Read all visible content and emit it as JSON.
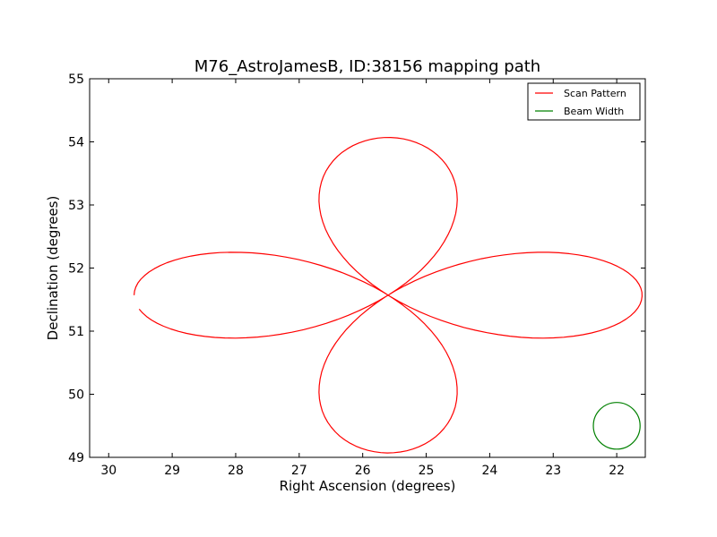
{
  "chart_data": {
    "type": "line",
    "title": "M76_AstroJamesB, ID:38156 mapping path",
    "xlabel": "Right Ascension (degrees)",
    "ylabel": "Declination (degrees)",
    "xlim": [
      30.3,
      21.55
    ],
    "ylim": [
      49,
      55
    ],
    "x_inverted": true,
    "xticks": [
      "30",
      "29",
      "28",
      "27",
      "26",
      "25",
      "24",
      "23",
      "22"
    ],
    "yticks": [
      "49",
      "50",
      "51",
      "52",
      "53",
      "54",
      "55"
    ],
    "grid": false,
    "legend_position": "top-right",
    "series": [
      {
        "name": "Scan Pattern",
        "color": "#ff0000",
        "shape": "four-lobed rosette (rose curve) centered on the mapping target",
        "center": [
          25.6,
          51.57
        ],
        "lobe_extent_ra_deg": 4.0,
        "lobe_extent_dec_deg": 2.5,
        "ra_scale": 1.6,
        "ra_extremes": [
          29.6,
          21.6
        ],
        "dec_extremes": [
          49.07,
          54.07
        ],
        "path_start": [
          29.6,
          51.57
        ],
        "path_end": [
          29.5,
          51.35
        ]
      },
      {
        "name": "Beam Width",
        "color": "#008000",
        "shape": "circle",
        "center": [
          22.0,
          49.5
        ],
        "radius_dec_deg": 0.37
      }
    ]
  }
}
